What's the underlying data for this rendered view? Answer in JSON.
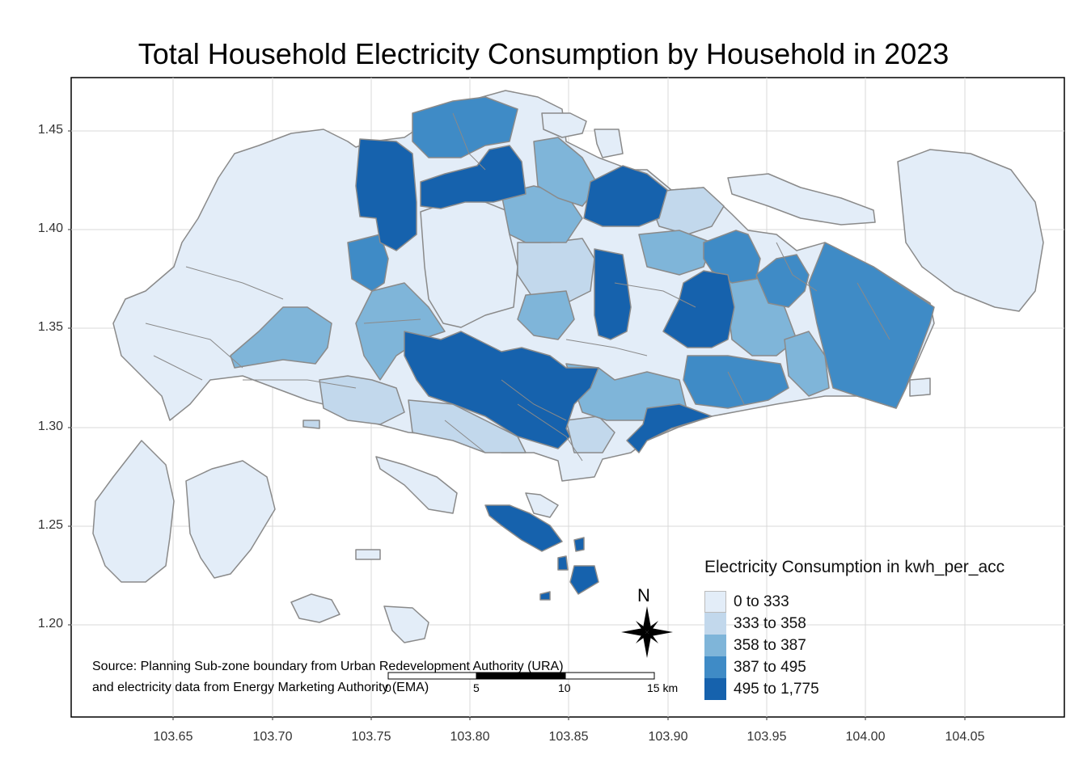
{
  "title": "Total Household Electricity Consumption by Household in 2023",
  "legend": {
    "title": "Electricity Consumption in kwh_per_acc",
    "classes": [
      {
        "label": "0 to 333",
        "color": "#e3edf8"
      },
      {
        "label": "333 to 358",
        "color": "#c2d8ec"
      },
      {
        "label": "358 to 387",
        "color": "#7fb5d9"
      },
      {
        "label": "387 to 495",
        "color": "#3f8bc6"
      },
      {
        "label": "495 to 1,775",
        "color": "#1662ad"
      }
    ]
  },
  "axes": {
    "y_ticks": [
      "1.45",
      "1.40",
      "1.35",
      "1.30",
      "1.25",
      "1.20"
    ],
    "x_ticks": [
      "103.65",
      "103.70",
      "103.75",
      "103.80",
      "103.85",
      "103.90",
      "103.95",
      "104.00",
      "104.05"
    ]
  },
  "source": {
    "line1": "Source: Planning Sub-zone boundary from Urban Redevelopment Authority (URA)",
    "line2": " and electricity data from Energy Marketing Authority (EMA)"
  },
  "north_arrow": {
    "label": "N"
  },
  "scale_bar": {
    "labels": [
      "0",
      "5",
      "10",
      "15 km"
    ]
  },
  "colors": {
    "boundary": "#8a8a8a",
    "grid": "#d9d9d9",
    "frame": "#000000"
  }
}
